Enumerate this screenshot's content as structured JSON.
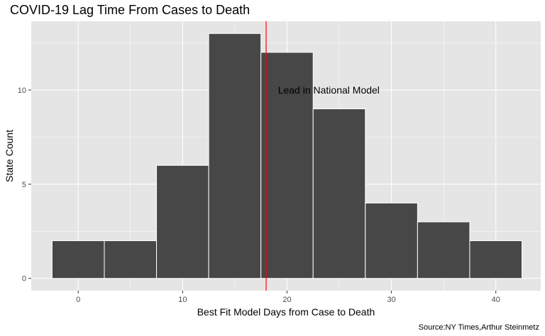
{
  "chart_data": {
    "type": "bar",
    "title": "COVID-19 Lag Time From Cases to Death",
    "xlabel": "Best Fit Model Days from Case to Death",
    "ylabel": "State Count",
    "caption": "Source:NY Times,Arthur Steinmetz",
    "bin_width": 5,
    "bin_centers": [
      0,
      5,
      10,
      15,
      20,
      25,
      30,
      35,
      40
    ],
    "values": [
      2,
      2,
      6,
      13,
      12,
      9,
      4,
      3,
      2
    ],
    "xlim": [
      -4.5,
      44.3
    ],
    "ylim": [
      -0.65,
      13.65
    ],
    "x_ticks": [
      0,
      10,
      20,
      30,
      40
    ],
    "x_tick_labels": [
      "0",
      "10",
      "20",
      "30",
      "40"
    ],
    "y_ticks": [
      0,
      5,
      10
    ],
    "y_tick_labels": [
      "0",
      "5",
      "10"
    ],
    "bar_color": "#474747",
    "bar_outline": "#ffffff",
    "panel_background": "#e5e5e5",
    "grid_color": "#ffffff",
    "grid": true,
    "reference_line": {
      "x": 18,
      "color": "#ff0000"
    },
    "annotation": {
      "text": "Lead in National Model",
      "x": 24,
      "y": 10
    }
  }
}
